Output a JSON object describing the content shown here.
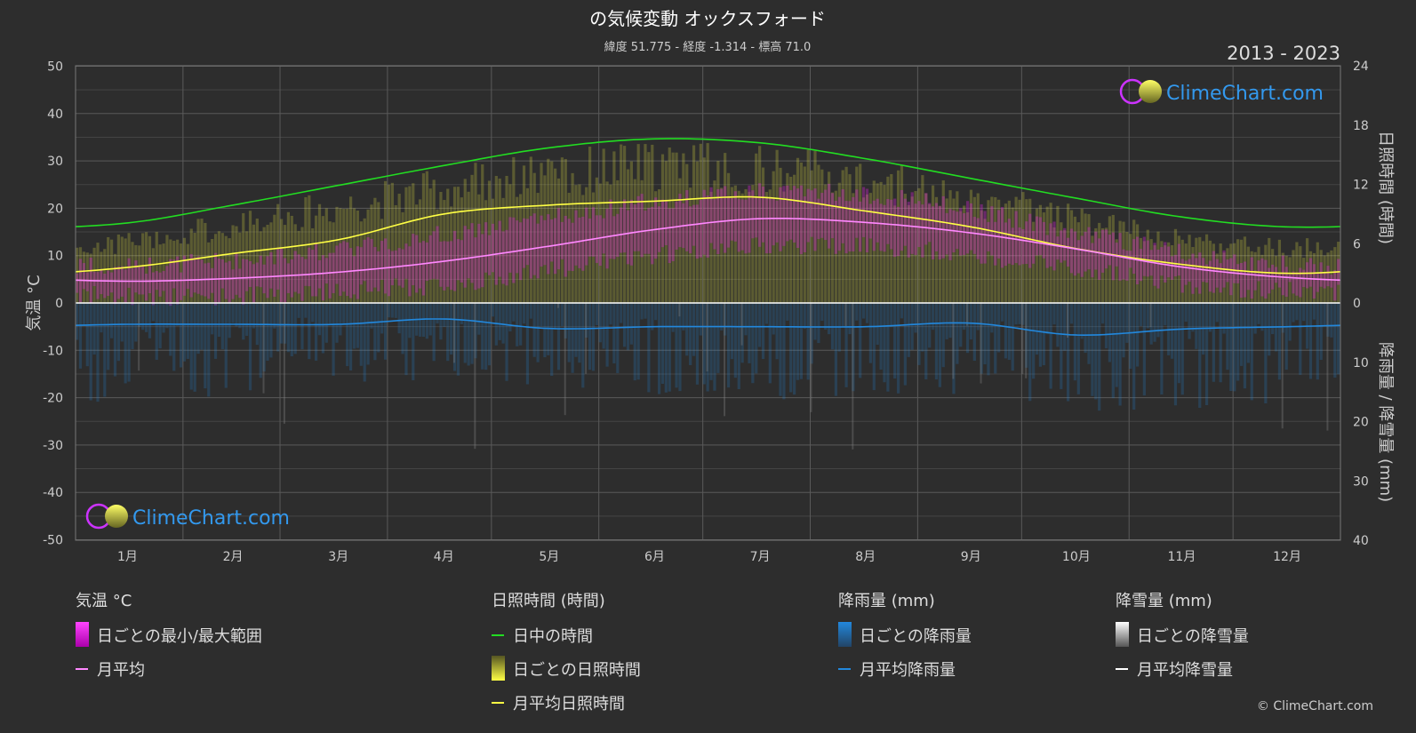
{
  "header": {
    "title": "の気候変動 オックスフォード",
    "subtitle": "緯度 51.775 - 経度 -1.314 - 標高 71.0",
    "year_range": "2013 - 2023"
  },
  "watermark": {
    "text": "ClimeChart.com"
  },
  "copyright": "© ClimeChart.com",
  "colors": {
    "background": "#2d2d2d",
    "daylight": "#22dd22",
    "sunshine": "#ffff44",
    "temp_avg": "#ff88ff",
    "temp_range": "#dd22dd",
    "rain": "#2288dd",
    "snow": "#ffffff"
  },
  "chart_data": {
    "type": "line",
    "categories": [
      "1月",
      "2月",
      "3月",
      "4月",
      "5月",
      "6月",
      "7月",
      "8月",
      "9月",
      "10月",
      "11月",
      "12月"
    ],
    "y_left": {
      "label": "気温 °C",
      "ticks": [
        "50",
        "40",
        "30",
        "20",
        "10",
        "0",
        "-10",
        "-20",
        "-30",
        "-40",
        "-50"
      ],
      "range": [
        -50,
        50
      ]
    },
    "y_right_top": {
      "label": "日照時間 (時間)",
      "ticks": [
        "24",
        "18",
        "12",
        "6",
        "0"
      ],
      "range": [
        0,
        24
      ]
    },
    "y_right_bottom": {
      "label": "降雨量 / 降雪量 (mm)",
      "ticks": [
        "0",
        "10",
        "20",
        "30",
        "40"
      ],
      "range": [
        0,
        40
      ]
    },
    "series": [
      {
        "name": "日中の時間",
        "unit": "hours",
        "values": [
          8.1,
          9.9,
          11.9,
          13.9,
          15.7,
          16.6,
          16.2,
          14.6,
          12.6,
          10.6,
          8.7,
          7.7
        ]
      },
      {
        "name": "月平均日照時間",
        "unit": "hours",
        "values": [
          3.6,
          5.0,
          6.4,
          9.0,
          9.9,
          10.3,
          10.7,
          9.3,
          7.7,
          5.5,
          3.9,
          3.0
        ]
      },
      {
        "name": "月平均",
        "unit": "°C",
        "values": [
          4.6,
          5.2,
          6.5,
          8.8,
          12.0,
          15.5,
          17.8,
          17.0,
          14.8,
          11.4,
          7.6,
          5.4
        ]
      },
      {
        "name": "月平均降雨量",
        "unit": "mm",
        "values": [
          3.6,
          3.6,
          3.6,
          2.7,
          4.3,
          4.0,
          4.0,
          4.0,
          3.4,
          5.4,
          4.4,
          4.0
        ]
      },
      {
        "name": "月平均降雪量",
        "unit": "mm",
        "values": [
          0.2,
          0.2,
          0.1,
          0,
          0,
          0,
          0,
          0,
          0,
          0,
          0,
          0.1
        ]
      }
    ],
    "daily_temp_range": {
      "min": [
        1.5,
        1.5,
        2.5,
        4.0,
        7.0,
        10.0,
        12.0,
        12.0,
        10.0,
        7.5,
        4.0,
        2.5
      ],
      "max": [
        8.0,
        9.0,
        11.5,
        14.5,
        18.0,
        21.5,
        23.5,
        23.0,
        19.5,
        15.0,
        10.5,
        8.0
      ]
    },
    "daily_sunshine_range": {
      "max": [
        6.5,
        8.5,
        10.5,
        12.5,
        14.0,
        15.0,
        14.5,
        13.5,
        11.5,
        9.0,
        7.0,
        6.0
      ]
    },
    "daily_rain_max": [
      14,
      13,
      12,
      11,
      12,
      13,
      14,
      13,
      13,
      15,
      15,
      14
    ]
  },
  "legend": {
    "groups": [
      {
        "title": "気温 °C",
        "items": [
          {
            "type": "bar",
            "label": "日ごとの最小/最大範囲",
            "swatch": "range"
          },
          {
            "type": "line",
            "label": "月平均",
            "color": "#ff88ff"
          }
        ]
      },
      {
        "title": "日照時間 (時間)",
        "items": [
          {
            "type": "line",
            "label": "日中の時間",
            "color": "#22dd22"
          },
          {
            "type": "bar",
            "label": "日ごとの日照時間",
            "swatch": "sun"
          },
          {
            "type": "line",
            "label": "月平均日照時間",
            "color": "#ffff44"
          }
        ]
      },
      {
        "title": "降雨量 (mm)",
        "items": [
          {
            "type": "bar",
            "label": "日ごとの降雨量",
            "swatch": "rain"
          },
          {
            "type": "line",
            "label": "月平均降雨量",
            "color": "#2288dd"
          }
        ]
      },
      {
        "title": "降雪量 (mm)",
        "items": [
          {
            "type": "bar",
            "label": "日ごとの降雪量",
            "swatch": "snow"
          },
          {
            "type": "line",
            "label": "月平均降雪量",
            "color": "#ffffff"
          }
        ]
      }
    ]
  }
}
